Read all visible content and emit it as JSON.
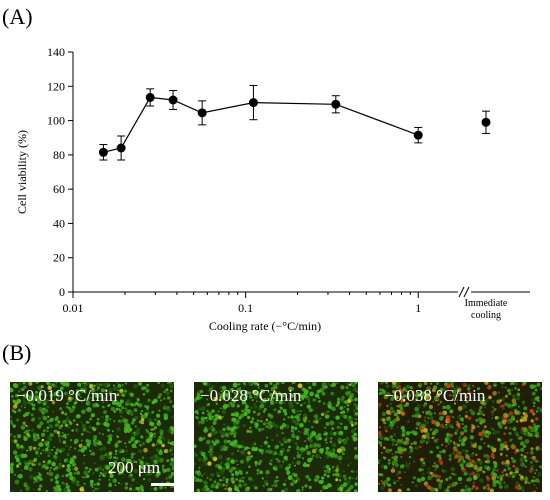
{
  "panels": {
    "a_label": "(A)",
    "b_label": "(B)"
  },
  "chart_data": {
    "type": "scatter",
    "ylabel": "Cell viability (%)",
    "xlabel": "Cooling rate (−°C/min)",
    "x_scale": "log",
    "xlim": [
      0.01,
      1.7
    ],
    "ylim": [
      0,
      140
    ],
    "y_ticks": [
      0,
      20,
      40,
      60,
      80,
      100,
      120,
      140
    ],
    "x_ticks": [
      {
        "value": 0.01,
        "label": "0.01"
      },
      {
        "value": 0.1,
        "label": "0.1"
      },
      {
        "value": 1,
        "label": "1"
      }
    ],
    "grid": false,
    "series_line": [
      {
        "x": 0.015,
        "y": 81.5,
        "err": 4.5
      },
      {
        "x": 0.019,
        "y": 84,
        "err": 7
      },
      {
        "x": 0.028,
        "y": 113.5,
        "err": 5
      },
      {
        "x": 0.038,
        "y": 112,
        "err": 5.5
      },
      {
        "x": 0.056,
        "y": 104.5,
        "err": 7
      },
      {
        "x": 0.111,
        "y": 110.5,
        "err": 10
      },
      {
        "x": 0.333,
        "y": 109.5,
        "err": 5
      },
      {
        "x": 1.0,
        "y": 91.5,
        "err": 4.5
      }
    ],
    "immediate": {
      "label": "Immediate cooling",
      "label_lines": [
        "Immediate",
        "cooling"
      ],
      "y": 99,
      "err": 6.5
    }
  },
  "micrographs": [
    {
      "caption": "−0.019 °C/min",
      "scalebar": "200 μm",
      "tint": "green"
    },
    {
      "caption": "−0.028 °C/min",
      "tint": "green"
    },
    {
      "caption": "−0.038 °C/min",
      "tint": "mixed"
    }
  ],
  "colors": {
    "marker": "#000000",
    "line": "#000000"
  }
}
